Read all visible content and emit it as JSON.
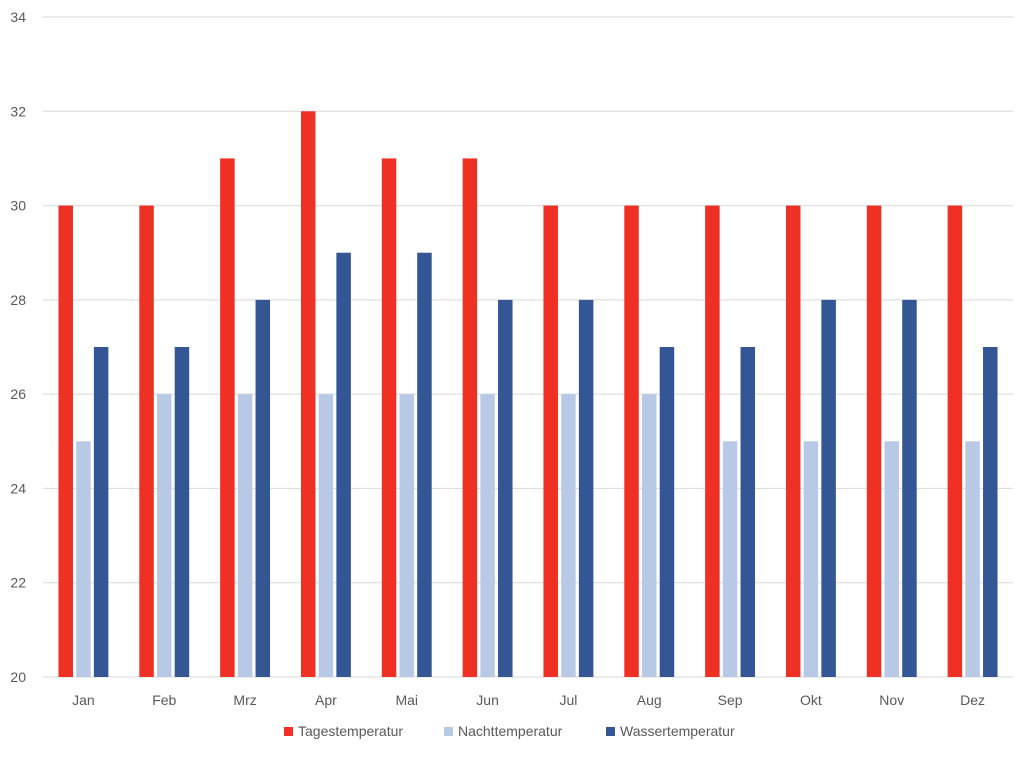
{
  "chart_data": {
    "type": "bar",
    "categories": [
      "Jan",
      "Feb",
      "Mrz",
      "Apr",
      "Mai",
      "Jun",
      "Jul",
      "Aug",
      "Sep",
      "Okt",
      "Nov",
      "Dez"
    ],
    "series": [
      {
        "name": "Tagestemperatur",
        "color": "#EE3124",
        "values": [
          30,
          30,
          31,
          32,
          31,
          31,
          30,
          30,
          30,
          30,
          30,
          30
        ]
      },
      {
        "name": "Nachttemperatur",
        "color": "#B8C9E6",
        "values": [
          25,
          26,
          26,
          26,
          26,
          26,
          26,
          26,
          25,
          25,
          25,
          25
        ]
      },
      {
        "name": "Wassertemperatur",
        "color": "#345695",
        "values": [
          27,
          27,
          28,
          29,
          29,
          28,
          28,
          27,
          27,
          28,
          28,
          27
        ]
      }
    ],
    "ylim": [
      20,
      34
    ],
    "yticks": [
      "20",
      "22",
      "24",
      "26",
      "28",
      "30",
      "32",
      "34"
    ],
    "grid": true,
    "legend_position": "bottom",
    "title": "",
    "xlabel": "",
    "ylabel": ""
  }
}
